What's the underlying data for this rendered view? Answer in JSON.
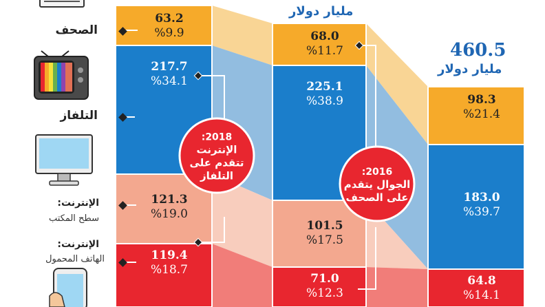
{
  "chart_data": {
    "type": "bar",
    "stacked": true,
    "categories_legend": [
      {
        "key": "newspapers",
        "label": "الصحف",
        "icon": "newspaper-icon"
      },
      {
        "key": "tv",
        "label": "التلفاز",
        "icon": "tv-icon"
      },
      {
        "key": "desktop",
        "label": "الإنترنت:",
        "sublabel": "سطح المكتب",
        "icon": "monitor-icon"
      },
      {
        "key": "mobile",
        "label": "الإنترنت:",
        "sublabel": "الهاتف المحمول",
        "icon": "phone-icon"
      }
    ],
    "columns": [
      {
        "name": "left",
        "total": null,
        "unit": "",
        "segments": [
          {
            "key": "newspapers",
            "value": "63.2",
            "pct": "%9.9",
            "color": "#f6aa2a"
          },
          {
            "key": "tv",
            "value": "217.7",
            "pct": "%34.1",
            "color": "#1b7ecb"
          },
          {
            "key": "desktop",
            "value": "121.3",
            "pct": "%19.0",
            "color": "#f3a88f"
          },
          {
            "key": "mobile",
            "value": "119.4",
            "pct": "%18.7",
            "color": "#e8262f"
          }
        ]
      },
      {
        "name": "middle",
        "total": null,
        "unit": "مليار دولار",
        "segments": [
          {
            "key": "newspapers",
            "value": "68.0",
            "pct": "%11.7",
            "color": "#f6aa2a"
          },
          {
            "key": "tv",
            "value": "225.1",
            "pct": "%38.9",
            "color": "#1b7ecb"
          },
          {
            "key": "desktop",
            "value": "101.5",
            "pct": "%17.5",
            "color": "#f3a88f"
          },
          {
            "key": "mobile",
            "value": "71.0",
            "pct": "%12.3",
            "color": "#e8262f"
          }
        ]
      },
      {
        "name": "right",
        "total": "460.5",
        "unit": "مليار دولار",
        "segments": [
          {
            "key": "newspapers",
            "value": "98.3",
            "pct": "%21.4",
            "color": "#f6aa2a"
          },
          {
            "key": "tv",
            "value": "183.0",
            "pct": "%39.7",
            "color": "#1b7ecb"
          },
          {
            "key": "desktop",
            "value": "",
            "pct": "",
            "color": "#f3a88f"
          },
          {
            "key": "mobile",
            "value": "64.8",
            "pct": "%14.1",
            "color": "#e8262f"
          }
        ]
      }
    ],
    "annotations": [
      {
        "year": "2018:",
        "lines": [
          "الإنترنت",
          "تتقدم على",
          "التلفاز"
        ],
        "color": "#e8262f"
      },
      {
        "year": "2016:",
        "lines": [
          "الجوال يتقدم",
          "على الصحف"
        ],
        "color": "#e8262f"
      }
    ]
  }
}
